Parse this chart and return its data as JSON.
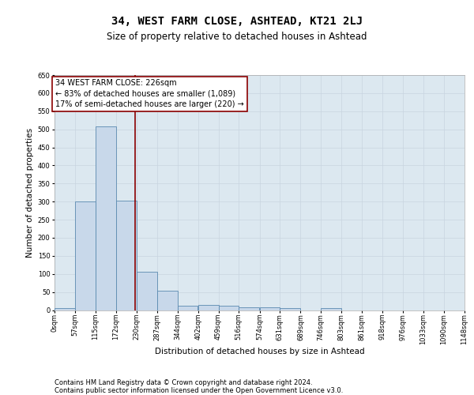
{
  "title": "34, WEST FARM CLOSE, ASHTEAD, KT21 2LJ",
  "subtitle": "Size of property relative to detached houses in Ashtead",
  "xlabel": "Distribution of detached houses by size in Ashtead",
  "ylabel": "Number of detached properties",
  "bar_values": [
    5,
    300,
    507,
    303,
    107,
    53,
    13,
    15,
    13,
    8,
    8,
    5,
    0,
    5,
    0,
    0,
    0,
    0,
    0,
    0
  ],
  "bin_edges": [
    0,
    57,
    115,
    172,
    230,
    287,
    344,
    402,
    459,
    516,
    574,
    631,
    689,
    746,
    803,
    861,
    918,
    976,
    1033,
    1090,
    1148
  ],
  "tick_labels": [
    "0sqm",
    "57sqm",
    "115sqm",
    "172sqm",
    "230sqm",
    "287sqm",
    "344sqm",
    "402sqm",
    "459sqm",
    "516sqm",
    "574sqm",
    "631sqm",
    "689sqm",
    "746sqm",
    "803sqm",
    "861sqm",
    "918sqm",
    "976sqm",
    "1033sqm",
    "1090sqm",
    "1148sqm"
  ],
  "bar_color": "#c8d8ea",
  "bar_edge_color": "#5a8ab0",
  "vline_x": 226,
  "vline_color": "#8b0000",
  "annotation_line1": "34 WEST FARM CLOSE: 226sqm",
  "annotation_line2": "← 83% of detached houses are smaller (1,089)",
  "annotation_line3": "17% of semi-detached houses are larger (220) →",
  "annotation_box_color": "#8b0000",
  "ylim": [
    0,
    650
  ],
  "yticks": [
    0,
    50,
    100,
    150,
    200,
    250,
    300,
    350,
    400,
    450,
    500,
    550,
    600,
    650
  ],
  "grid_color": "#c8d4e0",
  "background_color": "#dce8f0",
  "footer_line1": "Contains HM Land Registry data © Crown copyright and database right 2024.",
  "footer_line2": "Contains public sector information licensed under the Open Government Licence v3.0.",
  "title_fontsize": 10,
  "subtitle_fontsize": 8.5,
  "axis_label_fontsize": 7.5,
  "tick_fontsize": 6,
  "annotation_fontsize": 7,
  "footer_fontsize": 6
}
